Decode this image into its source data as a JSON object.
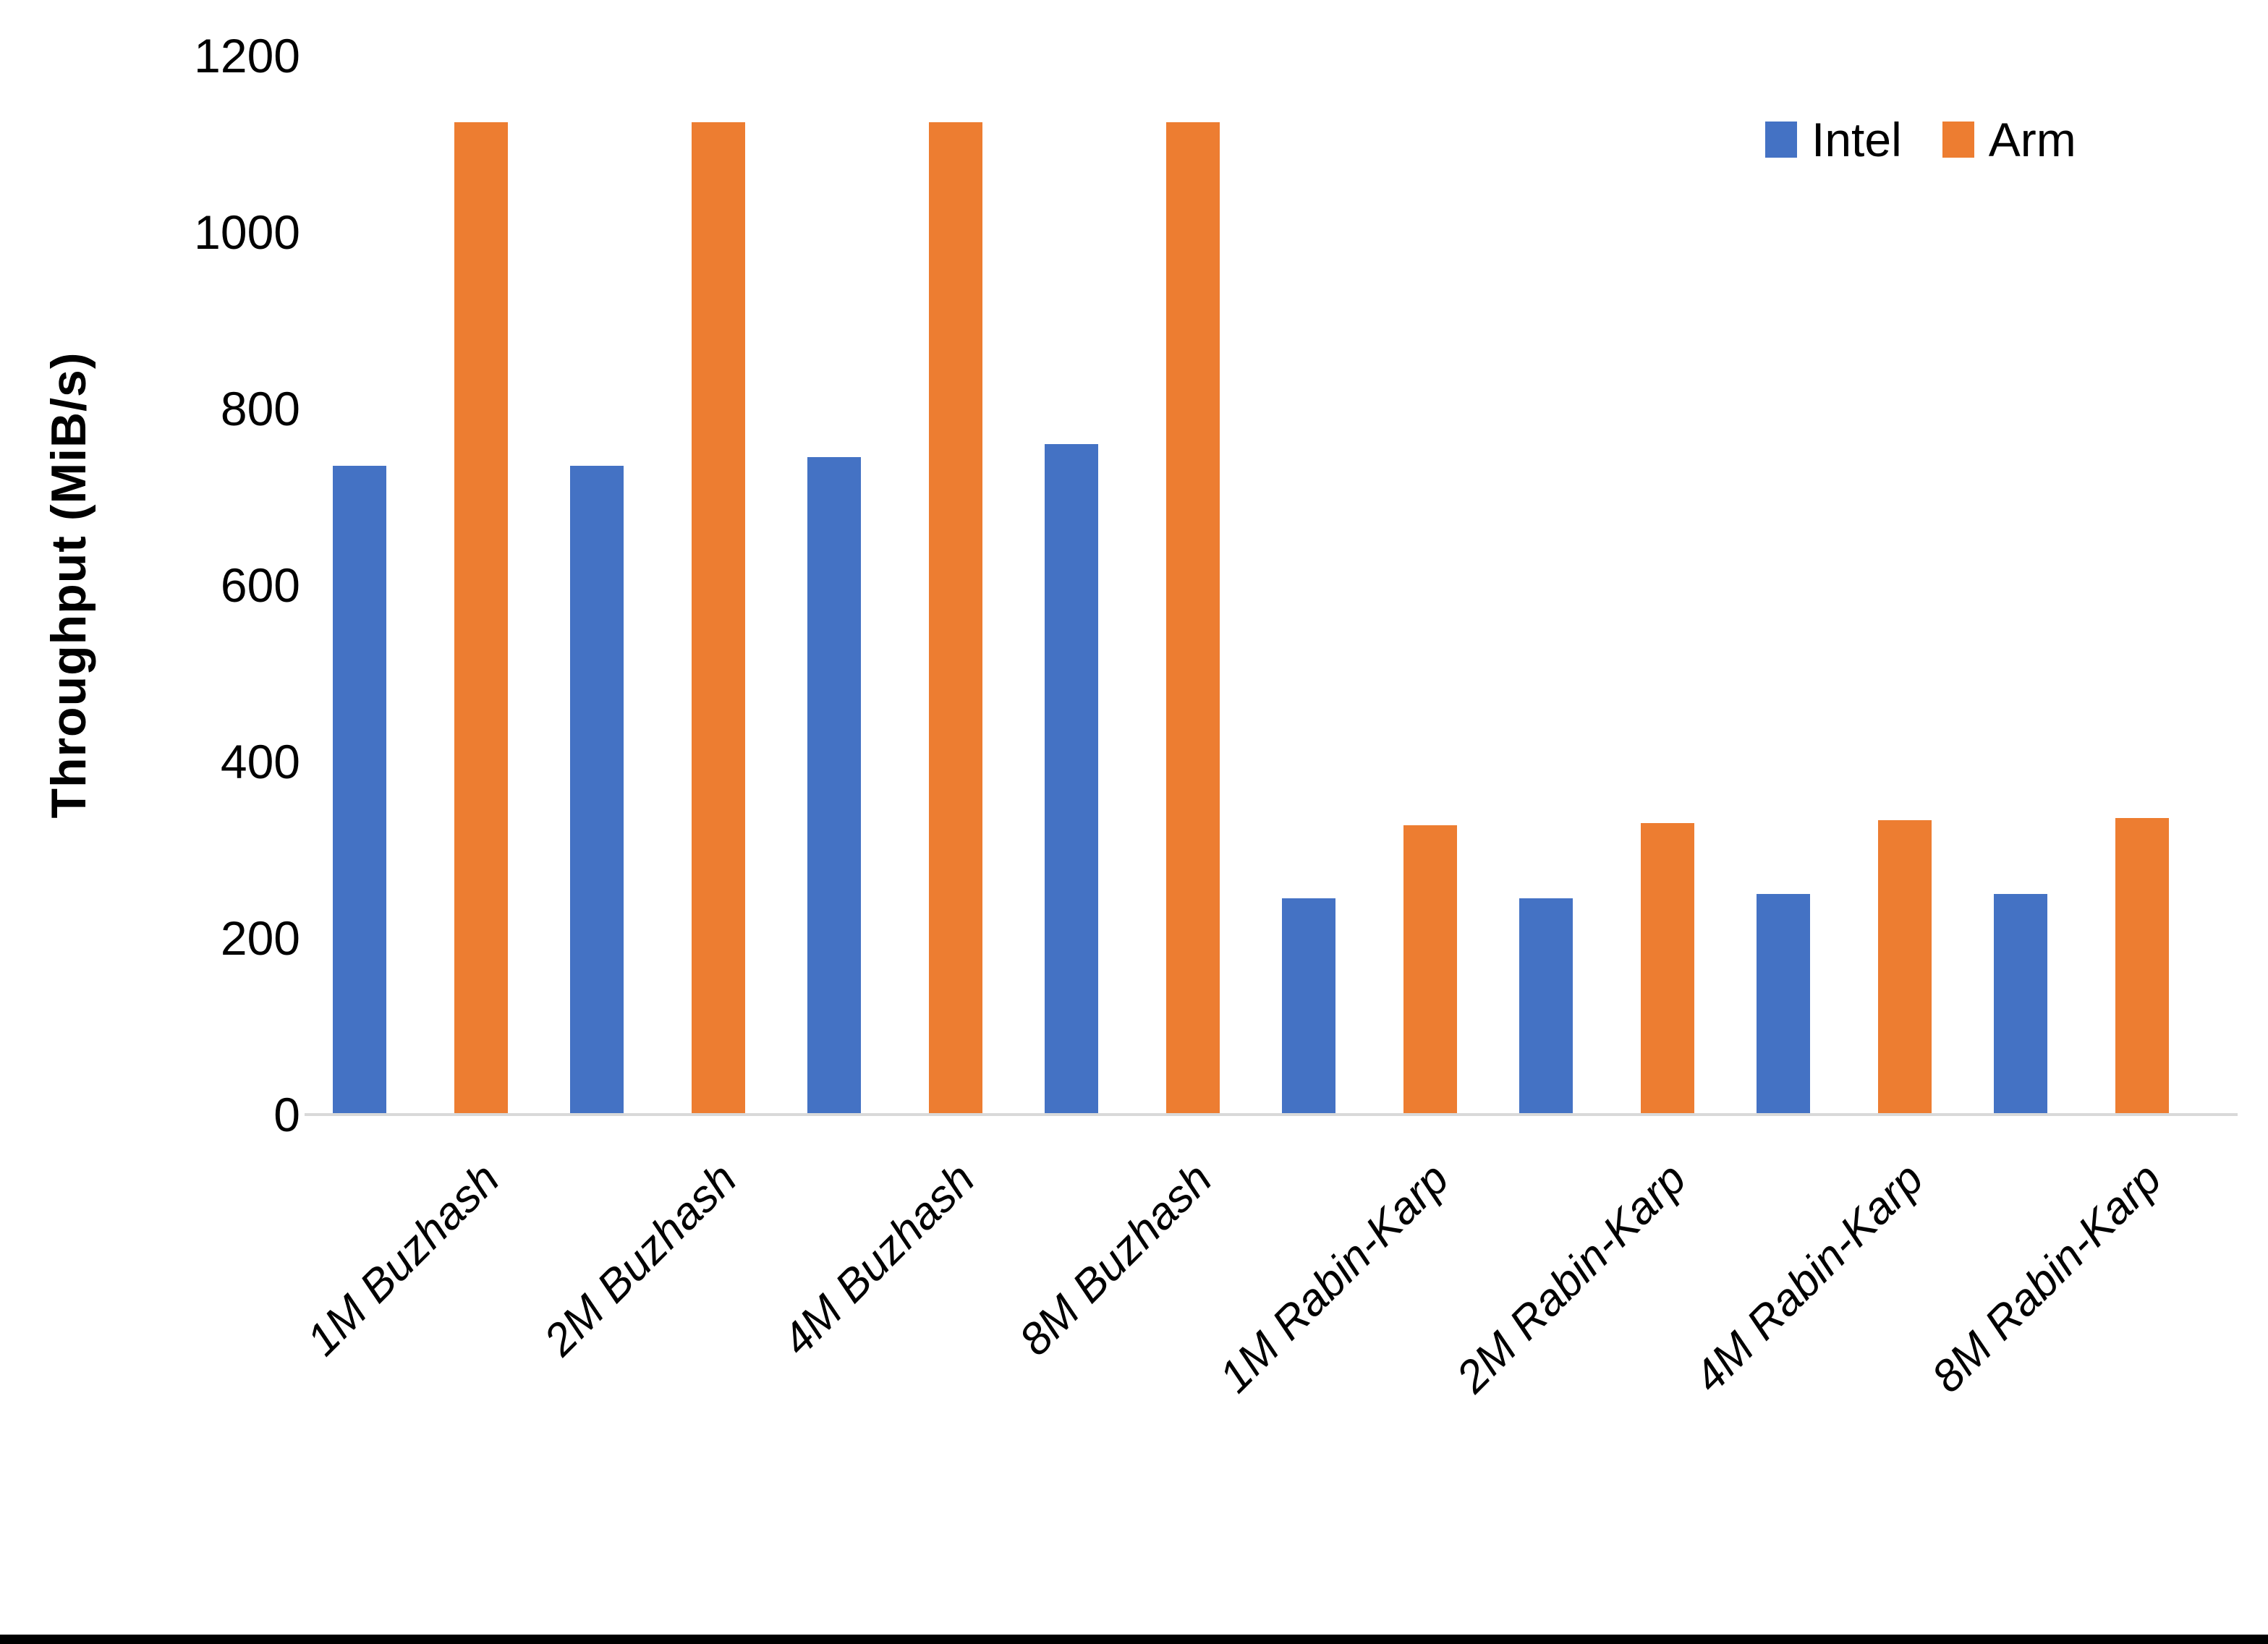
{
  "chart_data": {
    "type": "bar",
    "title": "",
    "categories": [
      "1M Buzhash",
      "2M Buzhash",
      "4M Buzhash",
      "8M Buzhash",
      "1M Rabin-Karp",
      "2M Rabin-Karp",
      "4M Rabin-Karp",
      "8M Rabin-Karp"
    ],
    "series": [
      {
        "name": "Intel",
        "color": "#4472C4",
        "values": [
          735,
          735,
          745,
          760,
          245,
          245,
          250,
          250
        ]
      },
      {
        "name": "Arm",
        "color": "#ED7D31",
        "values": [
          1125,
          1125,
          1125,
          1125,
          328,
          330,
          334,
          336
        ]
      }
    ],
    "xlabel": "",
    "ylabel": "Throughput (MiB/s)",
    "ylim": [
      0,
      1200
    ],
    "yticks": [
      0,
      200,
      400,
      600,
      800,
      1000,
      1200
    ],
    "grid": false,
    "legend_position": "top-right",
    "axis_line_color": "#D9D9D9",
    "text_color": "#000000"
  }
}
